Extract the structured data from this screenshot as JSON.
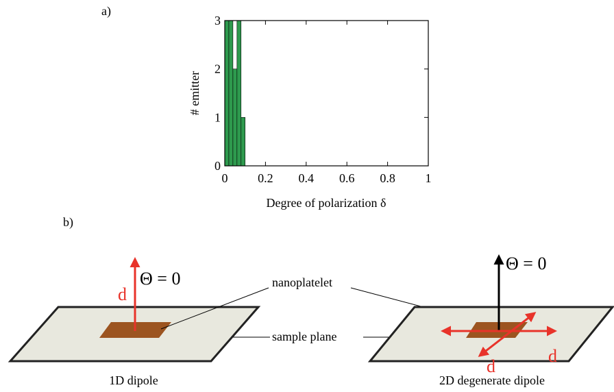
{
  "panel_a": "a)",
  "panel_b": "b)",
  "chart_data": {
    "type": "histogram",
    "x_label": "Degree of polarization δ",
    "y_label": "# emitter",
    "bins": [
      0,
      0.02,
      0.04,
      0.06,
      0.08,
      0.1
    ],
    "values": [
      3,
      3,
      2,
      3,
      1
    ],
    "color": "#2e9a4e",
    "xlim": [
      0,
      1
    ],
    "xticks": [
      0,
      0.2,
      0.4,
      0.6,
      0.8,
      1
    ],
    "ylim": [
      0,
      3
    ],
    "yticks": [
      0,
      1,
      2,
      3
    ]
  },
  "diagram": {
    "left_angle": "Θ = 0",
    "left_dipole": "d",
    "nanoplatelet": "nanoplatelet",
    "sample_plane": "sample plane",
    "left_caption": "1D dipole",
    "right_angle": "Θ = 0",
    "right_dipole_1": "d",
    "right_dipole_2": "d",
    "right_caption": "2D degenerate dipole"
  }
}
